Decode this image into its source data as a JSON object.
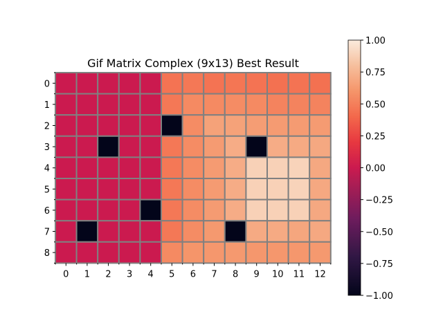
{
  "chart_data": {
    "type": "heatmap",
    "title": "Gif Matrix Complex (9x13) Best Result",
    "rows": 9,
    "cols": 13,
    "x_tick_labels": [
      "0",
      "1",
      "2",
      "3",
      "4",
      "5",
      "6",
      "7",
      "8",
      "9",
      "10",
      "11",
      "12"
    ],
    "y_tick_labels": [
      "0",
      "1",
      "2",
      "3",
      "4",
      "5",
      "6",
      "7",
      "8"
    ],
    "values": [
      [
        0,
        0,
        0,
        0,
        0,
        0.45,
        0.47,
        0.45,
        0.46,
        0.45,
        0.44,
        0.45,
        0.44
      ],
      [
        0,
        0,
        0,
        0,
        0,
        0.47,
        0.55,
        0.55,
        0.56,
        0.55,
        0.52,
        0.52,
        0.52
      ],
      [
        0,
        0,
        0,
        0,
        0,
        -1,
        0.56,
        0.66,
        0.66,
        0.64,
        0.63,
        0.63,
        0.63
      ],
      [
        0,
        0,
        -1,
        0,
        0,
        0.47,
        0.56,
        0.63,
        0.71,
        -1,
        0.71,
        0.7,
        0.69
      ],
      [
        0,
        0,
        0,
        0,
        0,
        0.47,
        0.56,
        0.63,
        0.71,
        0.88,
        0.88,
        0.89,
        0.69
      ],
      [
        0,
        0,
        0,
        0,
        0,
        0.47,
        0.56,
        0.63,
        0.71,
        0.88,
        0.88,
        0.89,
        0.69
      ],
      [
        0,
        0,
        0,
        0,
        -1,
        0.47,
        0.56,
        0.63,
        0.71,
        0.88,
        0.88,
        0.88,
        0.69
      ],
      [
        0,
        -1,
        0,
        0,
        0,
        0.47,
        0.56,
        0.62,
        -1,
        0.7,
        0.7,
        0.68,
        0.69
      ],
      [
        0,
        0,
        0,
        0,
        0,
        0.55,
        0.6,
        0.61,
        0.62,
        0.61,
        0.61,
        0.61,
        0.62
      ]
    ],
    "vmin": -1,
    "vmax": 1,
    "colormap": "rocket",
    "grid_color": "#808080",
    "colorbar": {
      "ticks": [
        1.0,
        0.75,
        0.5,
        0.25,
        0.0,
        -0.25,
        -0.5,
        -0.75,
        -1.0
      ],
      "tick_labels": [
        "1.00",
        "0.75",
        "0.50",
        "0.25",
        "0.00",
        "−0.25",
        "−0.50",
        "−0.75",
        "−1.00"
      ]
    }
  }
}
